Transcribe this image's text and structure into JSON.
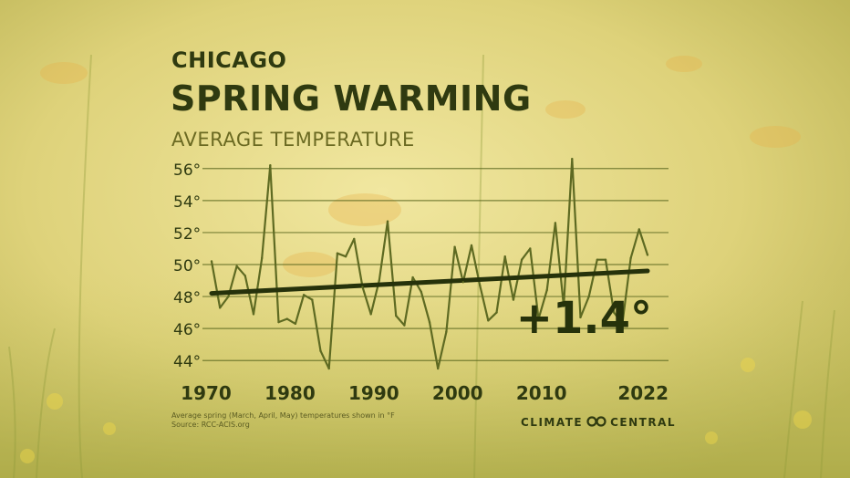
{
  "header": {
    "city": "CHICAGO",
    "title": "SPRING WARMING",
    "subtitle": "AVERAGE TEMPERATURE"
  },
  "footer": {
    "note": "Average spring (March, April, May) temperatures shown in °F",
    "source": "Source: RCC-ACIS.org",
    "brand_left": "CLIMATE",
    "brand_right": "CENTRAL",
    "brand_icon": "infinity-logo-icon"
  },
  "colors": {
    "line": "#5e6a22",
    "trend": "#26320b",
    "text": "#2f3a10",
    "background": "#e2d77a"
  },
  "chart_data": {
    "type": "line",
    "title": "SPRING WARMING",
    "subtitle": "AVERAGE TEMPERATURE",
    "xlabel": "",
    "ylabel": "",
    "x_ticks": [
      1970,
      1980,
      1990,
      2000,
      2010,
      2022
    ],
    "x_tick_labels": [
      "1970",
      "1980",
      "1990",
      "2000",
      "2010",
      "2022"
    ],
    "y_ticks": [
      44,
      46,
      48,
      50,
      52,
      54,
      56
    ],
    "y_tick_labels": [
      "44°",
      "46°",
      "48°",
      "50°",
      "52°",
      "54°",
      "56°"
    ],
    "xlim": [
      1970,
      2022
    ],
    "ylim": [
      43.5,
      56.5
    ],
    "grid": true,
    "annotation": "+1.4°",
    "series": [
      {
        "x": [
          1970,
          1971,
          1972,
          1973,
          1974,
          1975,
          1976,
          1977,
          1978,
          1979,
          1980,
          1981,
          1982,
          1983,
          1984,
          1985,
          1986,
          1987,
          1988,
          1989,
          1990,
          1991,
          1992,
          1993,
          1994,
          1995,
          1996,
          1997,
          1998,
          1999,
          2000,
          2001,
          2002,
          2003,
          2004,
          2005,
          2006,
          2007,
          2008,
          2009,
          2010,
          2011,
          2012,
          2013,
          2014,
          2015,
          2016,
          2017,
          2018,
          2019,
          2020,
          2021,
          2022
        ],
        "values": [
          50.2,
          47.3,
          48.0,
          49.9,
          49.3,
          46.9,
          50.4,
          56.2,
          46.4,
          46.6,
          46.3,
          48.1,
          47.8,
          44.6,
          43.5,
          50.7,
          50.5,
          51.6,
          48.6,
          46.9,
          49.0,
          52.7,
          46.8,
          46.2,
          49.2,
          48.3,
          46.4,
          43.5,
          45.8,
          51.1,
          48.9,
          51.2,
          48.7,
          46.5,
          47.0,
          50.5,
          47.8,
          50.3,
          51.0,
          46.6,
          48.4,
          52.6,
          47.4,
          56.6,
          46.7,
          48.0,
          50.3,
          50.3,
          47.0,
          46.3,
          50.4,
          52.2,
          50.6
        ]
      }
    ],
    "trend": {
      "start": [
        1970,
        48.2
      ],
      "end": [
        2022,
        49.6
      ]
    }
  }
}
